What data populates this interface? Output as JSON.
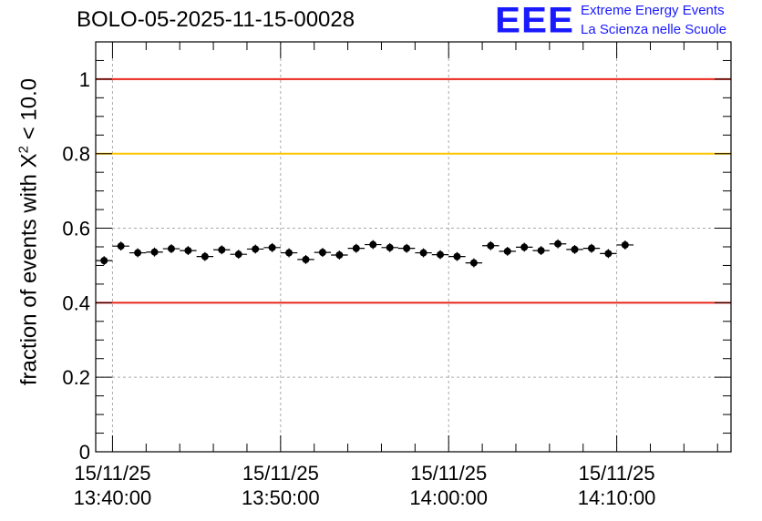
{
  "header": {
    "run_title": "BOLO-05-2025-11-15-00028",
    "logo_text": "EEE",
    "logo_line1": "Extreme Energy Events",
    "logo_line2": "La Scienza nelle Scuole"
  },
  "chart_data": {
    "type": "scatter",
    "ylabel": "fraction of events with X² < 10.0",
    "ylabel_main": "fraction of events with X",
    "ylabel_sup": "2",
    "ylabel_tail": " < 10.0",
    "ylim": [
      0,
      1.1
    ],
    "xlim_minutes": [
      -1.0,
      36.8
    ],
    "grid": true,
    "y_ticks": [
      {
        "value": 0,
        "label": "0"
      },
      {
        "value": 0.2,
        "label": "0.2"
      },
      {
        "value": 0.4,
        "label": "0.4"
      },
      {
        "value": 0.6,
        "label": "0.6"
      },
      {
        "value": 0.8,
        "label": "0.8"
      },
      {
        "value": 1,
        "label": "1"
      }
    ],
    "x_ticks": [
      {
        "minute": 0,
        "line1": "15/11/25",
        "line2": "13:40:00"
      },
      {
        "minute": 10,
        "line1": "15/11/25",
        "line2": "13:50:00"
      },
      {
        "minute": 20,
        "line1": "15/11/25",
        "line2": "14:00:00"
      },
      {
        "minute": 30,
        "line1": "15/11/25",
        "line2": "14:10:00"
      }
    ],
    "reference_lines": [
      {
        "y": 1.0,
        "color": "#e8261c"
      },
      {
        "y": 0.8,
        "color": "#ffc400"
      },
      {
        "y": 0.4,
        "color": "#e8261c"
      }
    ],
    "series": [
      {
        "color": "#000000",
        "x_halfwidth_minutes": 0.5,
        "points": [
          {
            "x": -0.5,
            "y": 0.513,
            "err": 0.012
          },
          {
            "x": 0.5,
            "y": 0.552,
            "err": 0.012
          },
          {
            "x": 1.5,
            "y": 0.534,
            "err": 0.012
          },
          {
            "x": 2.5,
            "y": 0.536,
            "err": 0.012
          },
          {
            "x": 3.5,
            "y": 0.545,
            "err": 0.012
          },
          {
            "x": 4.5,
            "y": 0.54,
            "err": 0.012
          },
          {
            "x": 5.5,
            "y": 0.524,
            "err": 0.012
          },
          {
            "x": 6.5,
            "y": 0.542,
            "err": 0.012
          },
          {
            "x": 7.5,
            "y": 0.53,
            "err": 0.012
          },
          {
            "x": 8.5,
            "y": 0.544,
            "err": 0.012
          },
          {
            "x": 9.5,
            "y": 0.548,
            "err": 0.012
          },
          {
            "x": 10.5,
            "y": 0.534,
            "err": 0.012
          },
          {
            "x": 11.5,
            "y": 0.516,
            "err": 0.012
          },
          {
            "x": 12.5,
            "y": 0.535,
            "err": 0.012
          },
          {
            "x": 13.5,
            "y": 0.528,
            "err": 0.012
          },
          {
            "x": 14.5,
            "y": 0.546,
            "err": 0.012
          },
          {
            "x": 15.5,
            "y": 0.556,
            "err": 0.012
          },
          {
            "x": 16.5,
            "y": 0.548,
            "err": 0.012
          },
          {
            "x": 17.5,
            "y": 0.546,
            "err": 0.012
          },
          {
            "x": 18.5,
            "y": 0.534,
            "err": 0.012
          },
          {
            "x": 19.5,
            "y": 0.529,
            "err": 0.012
          },
          {
            "x": 20.5,
            "y": 0.524,
            "err": 0.012
          },
          {
            "x": 21.5,
            "y": 0.507,
            "err": 0.012
          },
          {
            "x": 22.5,
            "y": 0.553,
            "err": 0.012
          },
          {
            "x": 23.5,
            "y": 0.538,
            "err": 0.012
          },
          {
            "x": 24.5,
            "y": 0.549,
            "err": 0.012
          },
          {
            "x": 25.5,
            "y": 0.54,
            "err": 0.012
          },
          {
            "x": 26.5,
            "y": 0.558,
            "err": 0.012
          },
          {
            "x": 27.5,
            "y": 0.543,
            "err": 0.012
          },
          {
            "x": 28.5,
            "y": 0.546,
            "err": 0.012
          },
          {
            "x": 29.5,
            "y": 0.532,
            "err": 0.012
          },
          {
            "x": 30.5,
            "y": 0.555,
            "err": 0.012
          }
        ]
      }
    ]
  }
}
